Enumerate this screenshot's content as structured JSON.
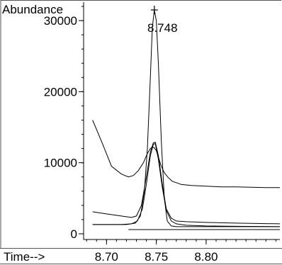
{
  "chart_data": {
    "type": "line",
    "ylabel": "Abundance",
    "xlabel": "Time-->",
    "peak_label": "8.748",
    "xlim": [
      8.677,
      8.874
    ],
    "ylim": [
      -800,
      32600
    ],
    "y_ticks": [
      {
        "value": 0,
        "label": "0"
      },
      {
        "value": 10000,
        "label": "10000"
      },
      {
        "value": 20000,
        "label": "20000"
      },
      {
        "value": 30000,
        "label": "30000"
      }
    ],
    "x_ticks": [
      {
        "value": 8.7,
        "label": "8.70"
      },
      {
        "value": 8.75,
        "label": "8.75"
      },
      {
        "value": 8.8,
        "label": "8.80"
      }
    ],
    "peak_marker": {
      "x": 8.748,
      "y": 31500
    },
    "series": [
      {
        "x": [
          8.686,
          8.695,
          8.705,
          8.715,
          8.722,
          8.727,
          8.732,
          8.737,
          8.741,
          8.744,
          8.746,
          8.748,
          8.75,
          8.752,
          8.755,
          8.758,
          8.762,
          8.766,
          8.77,
          8.775,
          8.785,
          8.8,
          8.815,
          8.83,
          8.845,
          8.86,
          8.874
        ],
        "y": [
          16000,
          13000,
          9500,
          8400,
          8000,
          8200,
          8900,
          10000,
          11300,
          12000,
          12200,
          12100,
          11700,
          10800,
          9500,
          8600,
          7900,
          7400,
          7200,
          6950,
          6800,
          6700,
          6600,
          6600,
          6550,
          6500,
          6500
        ]
      },
      {
        "x": [
          8.686,
          8.7,
          8.715,
          8.725,
          8.73,
          8.735,
          8.74,
          8.744,
          8.747,
          8.749,
          8.752,
          8.756,
          8.76,
          8.765,
          8.77,
          8.78,
          8.8,
          8.83,
          8.874
        ],
        "y": [
          3100,
          2800,
          2500,
          2300,
          2500,
          4000,
          8000,
          11500,
          12800,
          12900,
          11000,
          7000,
          3500,
          2200,
          1800,
          1700,
          1600,
          1500,
          1400
        ]
      },
      {
        "x": [
          8.686,
          8.72,
          8.729,
          8.734,
          8.738,
          8.741,
          8.744,
          8.746,
          8.748,
          8.75,
          8.752,
          8.755,
          8.758,
          8.761,
          8.765,
          8.77,
          8.8,
          8.874
        ],
        "y": [
          1300,
          1300,
          1500,
          2500,
          6000,
          12000,
          22000,
          29000,
          31500,
          30000,
          24000,
          13000,
          5000,
          1800,
          1100,
          1000,
          1000,
          1000
        ]
      },
      {
        "x": [
          8.686,
          8.7,
          8.715,
          8.725,
          8.731,
          8.736,
          8.74,
          8.744,
          8.747,
          8.749,
          8.752,
          8.756,
          8.76,
          8.765,
          8.77,
          8.78,
          8.8,
          8.83,
          8.874
        ],
        "y": [
          1300,
          1300,
          1300,
          1400,
          1800,
          3500,
          7000,
          11000,
          12600,
          12700,
          10500,
          6500,
          3300,
          1800,
          1400,
          1200,
          1100,
          1050,
          1000
        ]
      },
      {
        "x": [
          8.722,
          8.874
        ],
        "y": [
          600,
          600
        ]
      }
    ]
  }
}
